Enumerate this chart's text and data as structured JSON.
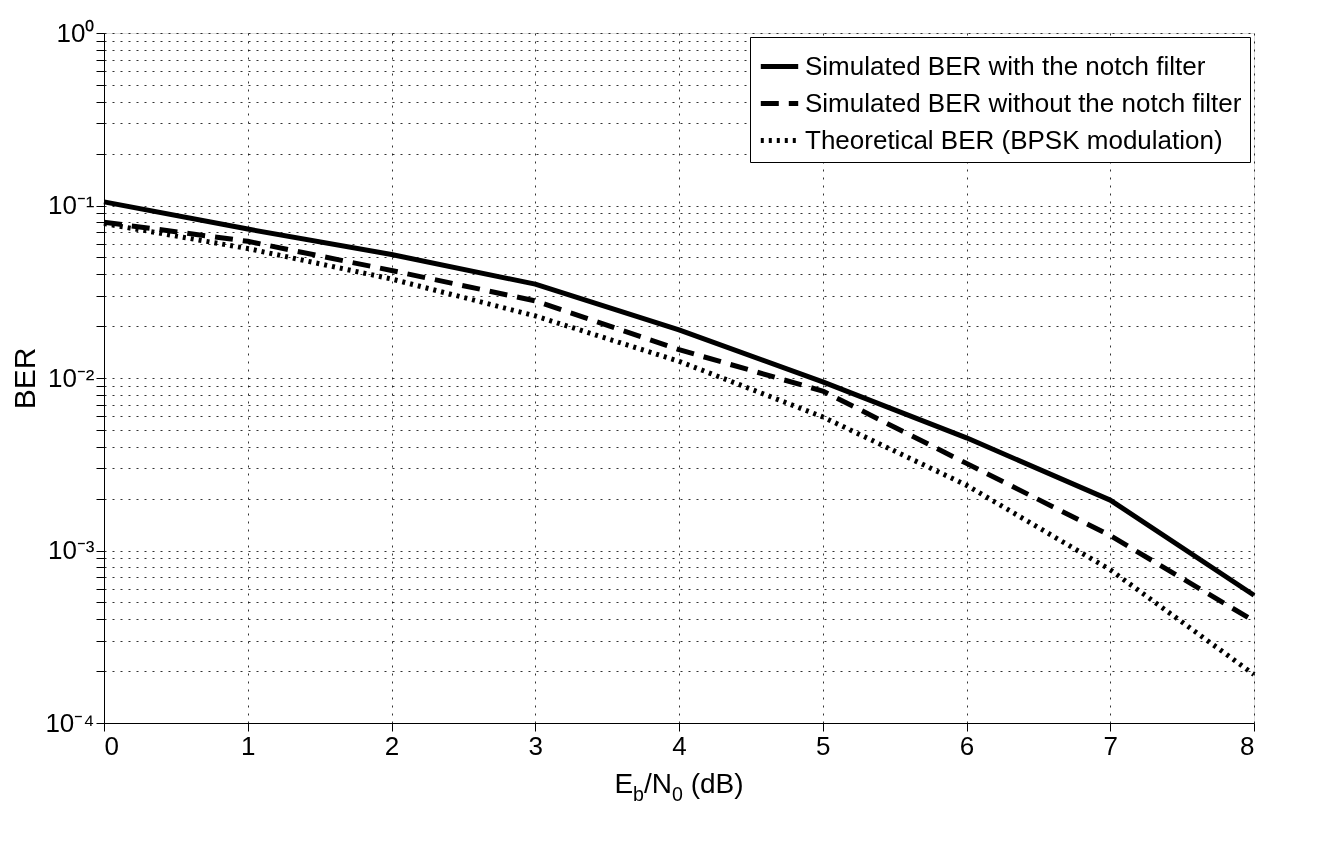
{
  "chart_data": {
    "type": "line",
    "xlabel": "E$_{b}$/N$_{0}$ (dB)",
    "ylabel": "BER",
    "x": [
      0,
      1,
      2,
      3,
      4,
      5,
      6,
      7,
      8
    ],
    "series": [
      {
        "name": "Simulated BER with the notch filter",
        "color": "#000000",
        "line_style": "solid",
        "values": [
          0.105,
          0.073,
          0.052,
          0.035,
          0.019,
          0.0095,
          0.0045,
          0.00196,
          0.00055
        ]
      },
      {
        "name": "Simulated BER without the notch filter",
        "color": "#000000",
        "line_style": "dashed",
        "values": [
          0.08,
          0.062,
          0.042,
          0.028,
          0.0146,
          0.0084,
          0.0032,
          0.00122,
          0.00039
        ]
      },
      {
        "name": "Theoretical BER (BPSK modulation)",
        "color": "#000000",
        "line_style": "dotted",
        "values": [
          0.0786,
          0.0563,
          0.0375,
          0.0229,
          0.0125,
          0.00595,
          0.00239,
          0.000773,
          0.000191
        ]
      }
    ],
    "xlim": [
      0,
      8
    ],
    "xticks": [
      0,
      1,
      2,
      3,
      4,
      5,
      6,
      7,
      8
    ],
    "ylim": [
      0.0001,
      1
    ],
    "yticks": [
      {
        "value": 0.0001,
        "label": "10⁻⁴"
      },
      {
        "value": 0.0002,
        "label": null
      },
      {
        "value": 0.0003,
        "label": null
      },
      {
        "value": 0.0004,
        "label": null
      },
      {
        "value": 0.0005,
        "label": null
      },
      {
        "value": 0.0006,
        "label": null
      },
      {
        "value": 0.0007,
        "label": null
      },
      {
        "value": 0.0008,
        "label": null
      },
      {
        "value": 0.0009,
        "label": null
      },
      {
        "value": 0.001,
        "label": "10⁻³"
      },
      {
        "value": 0.002,
        "label": null
      },
      {
        "value": 0.003,
        "label": null
      },
      {
        "value": 0.004,
        "label": null
      },
      {
        "value": 0.005,
        "label": null
      },
      {
        "value": 0.006,
        "label": null
      },
      {
        "value": 0.007,
        "label": null
      },
      {
        "value": 0.008,
        "label": null
      },
      {
        "value": 0.009,
        "label": null
      },
      {
        "value": 0.01,
        "label": "10⁻²"
      },
      {
        "value": 0.02,
        "label": null
      },
      {
        "value": 0.03,
        "label": null
      },
      {
        "value": 0.04,
        "label": null
      },
      {
        "value": 0.05,
        "label": null
      },
      {
        "value": 0.06,
        "label": null
      },
      {
        "value": 0.07,
        "label": null
      },
      {
        "value": 0.08,
        "label": null
      },
      {
        "value": 0.09,
        "label": null
      },
      {
        "value": 0.1,
        "label": "10⁻¹"
      },
      {
        "value": 0.2,
        "label": null
      },
      {
        "value": 0.3,
        "label": null
      },
      {
        "value": 0.4,
        "label": null
      },
      {
        "value": 0.5,
        "label": null
      },
      {
        "value": 0.6,
        "label": null
      },
      {
        "value": 0.7,
        "label": null
      },
      {
        "value": 0.8,
        "label": null
      },
      {
        "value": 0.9,
        "label": null
      },
      {
        "value": 1,
        "label": "10⁰"
      }
    ],
    "log": true,
    "grid": true,
    "legend": "top right",
    "marker": "none"
  }
}
